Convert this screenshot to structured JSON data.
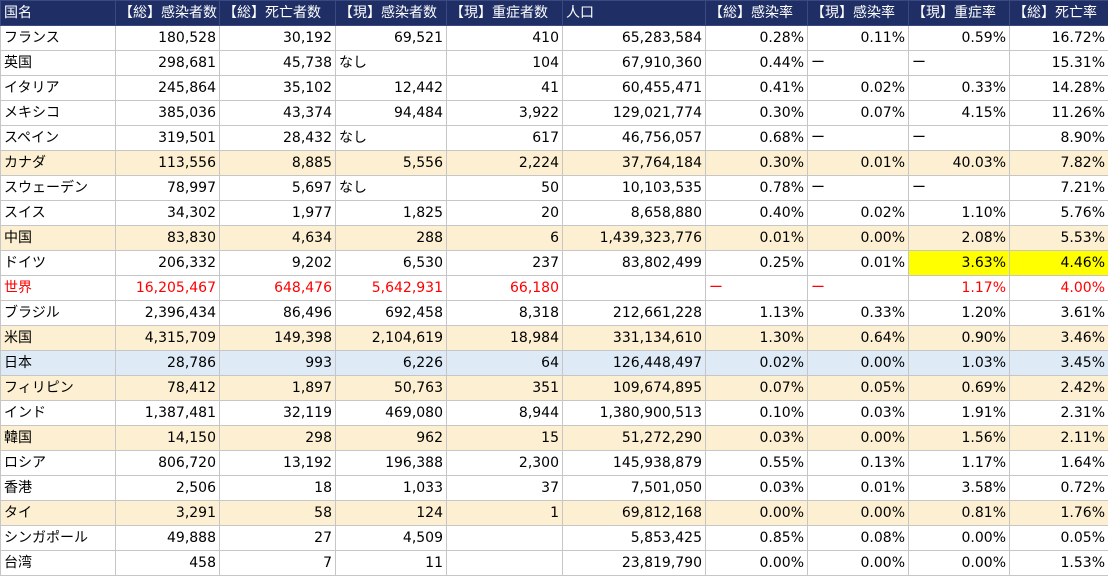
{
  "headers": [
    "国名",
    "【総】感染者数",
    "【総】死亡者数",
    "【現】感染者数",
    "【現】重症者数",
    "人口",
    "【総】感染率",
    "【現】感染率",
    "【現】重症率",
    "【総】死亡率"
  ],
  "rows": [
    {
      "style": "",
      "cells": [
        "フランス",
        "180,528",
        "30,192",
        "69,521",
        "410",
        "65,283,584",
        "0.28%",
        "0.11%",
        "0.59%",
        "16.72%"
      ]
    },
    {
      "style": "",
      "cells": [
        "英国",
        "298,681",
        "45,738",
        "なし",
        "104",
        "67,910,360",
        "0.44%",
        "ー",
        "ー",
        "15.31%"
      ]
    },
    {
      "style": "",
      "cells": [
        "イタリア",
        "245,864",
        "35,102",
        "12,442",
        "41",
        "60,455,471",
        "0.41%",
        "0.02%",
        "0.33%",
        "14.28%"
      ]
    },
    {
      "style": "",
      "cells": [
        "メキシコ",
        "385,036",
        "43,374",
        "94,484",
        "3,922",
        "129,021,774",
        "0.30%",
        "0.07%",
        "4.15%",
        "11.26%"
      ]
    },
    {
      "style": "",
      "cells": [
        "スペイン",
        "319,501",
        "28,432",
        "なし",
        "617",
        "46,756,057",
        "0.68%",
        "ー",
        "ー",
        "8.90%"
      ]
    },
    {
      "style": "yellow",
      "cells": [
        "カナダ",
        "113,556",
        "8,885",
        "5,556",
        "2,224",
        "37,764,184",
        "0.30%",
        "0.01%",
        "40.03%",
        "7.82%"
      ]
    },
    {
      "style": "",
      "cells": [
        "スウェーデン",
        "78,997",
        "5,697",
        "なし",
        "50",
        "10,103,535",
        "0.78%",
        "ー",
        "ー",
        "7.21%"
      ]
    },
    {
      "style": "",
      "cells": [
        "スイス",
        "34,302",
        "1,977",
        "1,825",
        "20",
        "8,658,880",
        "0.40%",
        "0.02%",
        "1.10%",
        "5.76%"
      ]
    },
    {
      "style": "yellow",
      "cells": [
        "中国",
        "83,830",
        "4,634",
        "288",
        "6",
        "1,439,323,776",
        "0.01%",
        "0.00%",
        "2.08%",
        "5.53%"
      ]
    },
    {
      "style": "",
      "cells": [
        "ドイツ",
        "206,332",
        "9,202",
        "6,530",
        "237",
        "83,802,499",
        "0.25%",
        "0.01%",
        "3.63%",
        "4.46%"
      ]
    },
    {
      "style": "red",
      "cells": [
        "世界",
        "16,205,467",
        "648,476",
        "5,642,931",
        "66,180",
        "",
        "ー",
        "ー",
        "1.17%",
        "4.00%"
      ]
    },
    {
      "style": "",
      "cells": [
        "ブラジル",
        "2,396,434",
        "86,496",
        "692,458",
        "8,318",
        "212,661,228",
        "1.13%",
        "0.33%",
        "1.20%",
        "3.61%"
      ]
    },
    {
      "style": "yellow",
      "cells": [
        "米国",
        "4,315,709",
        "149,398",
        "2,104,619",
        "18,984",
        "331,134,610",
        "1.30%",
        "0.64%",
        "0.90%",
        "3.46%"
      ]
    },
    {
      "style": "blue",
      "cells": [
        "日本",
        "28,786",
        "993",
        "6,226",
        "64",
        "126,448,497",
        "0.02%",
        "0.00%",
        "1.03%",
        "3.45%"
      ]
    },
    {
      "style": "yellow",
      "cells": [
        "フィリピン",
        "78,412",
        "1,897",
        "50,763",
        "351",
        "109,674,895",
        "0.07%",
        "0.05%",
        "0.69%",
        "2.42%"
      ]
    },
    {
      "style": "",
      "cells": [
        "インド",
        "1,387,481",
        "32,119",
        "469,080",
        "8,944",
        "1,380,900,513",
        "0.10%",
        "0.03%",
        "1.91%",
        "2.31%"
      ]
    },
    {
      "style": "yellow",
      "cells": [
        "韓国",
        "14,150",
        "298",
        "962",
        "15",
        "51,272,290",
        "0.03%",
        "0.00%",
        "1.56%",
        "2.11%"
      ]
    },
    {
      "style": "",
      "cells": [
        "ロシア",
        "806,720",
        "13,192",
        "196,388",
        "2,300",
        "145,938,879",
        "0.55%",
        "0.13%",
        "1.17%",
        "1.64%"
      ]
    },
    {
      "style": "",
      "cells": [
        "香港",
        "2,506",
        "18",
        "1,033",
        "37",
        "7,501,050",
        "0.03%",
        "0.01%",
        "3.58%",
        "0.72%"
      ]
    },
    {
      "style": "yellow",
      "cells": [
        "タイ",
        "3,291",
        "58",
        "124",
        "1",
        "69,812,168",
        "0.00%",
        "0.00%",
        "0.81%",
        "1.76%"
      ]
    },
    {
      "style": "",
      "cells": [
        "シンガポール",
        "49,888",
        "27",
        "4,509",
        "",
        "5,853,425",
        "0.85%",
        "0.08%",
        "0.00%",
        "0.05%"
      ]
    },
    {
      "style": "",
      "cells": [
        "台湾",
        "458",
        "7",
        "11",
        "",
        "23,819,790",
        "0.00%",
        "0.00%",
        "0.00%",
        "1.53%"
      ]
    }
  ],
  "colors": {
    "header_bg": "#1f2f66",
    "row_yellow": "#fdf0d2",
    "row_blue": "#deebf7",
    "world_text": "#ff0000",
    "highlight": "#ffff00"
  },
  "highlight_cells": [
    {
      "row": 9,
      "cols": [
        8,
        9
      ]
    }
  ]
}
